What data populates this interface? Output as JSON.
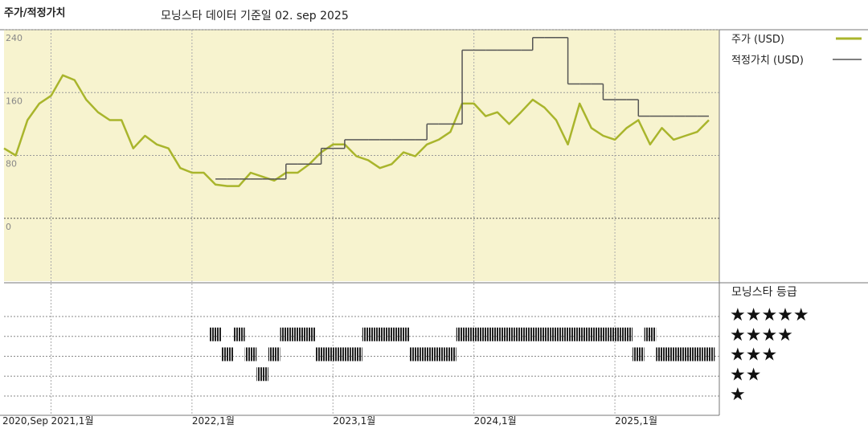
{
  "chart_data": {
    "type": "line",
    "title": "주가/적정가치",
    "subtitle": "모닝스타 데이터 기준일 02. sep 2025",
    "x": [
      "2020-09",
      "2020-10",
      "2020-11",
      "2020-12",
      "2021-01",
      "2021-02",
      "2021-03",
      "2021-04",
      "2021-05",
      "2021-06",
      "2021-07",
      "2021-08",
      "2021-09",
      "2021-10",
      "2021-11",
      "2021-12",
      "2022-01",
      "2022-02",
      "2022-03",
      "2022-04",
      "2022-05",
      "2022-06",
      "2022-07",
      "2022-08",
      "2022-09",
      "2022-10",
      "2022-11",
      "2022-12",
      "2023-01",
      "2023-02",
      "2023-03",
      "2023-04",
      "2023-05",
      "2023-06",
      "2023-07",
      "2023-08",
      "2023-09",
      "2023-10",
      "2023-11",
      "2023-12",
      "2024-01",
      "2024-02",
      "2024-03",
      "2024-04",
      "2024-05",
      "2024-06",
      "2024-07",
      "2024-08",
      "2024-09",
      "2024-10",
      "2024-11",
      "2024-12",
      "2025-01",
      "2025-02",
      "2025-03",
      "2025-04",
      "2025-05",
      "2025-06",
      "2025-07",
      "2025-08",
      "2025-09"
    ],
    "xticks": [
      {
        "value": "2020-09",
        "label": "2020,Sep"
      },
      {
        "value": "2021-01",
        "label": "2021,1월"
      },
      {
        "value": "2022-01",
        "label": "2022,1월"
      },
      {
        "value": "2023-01",
        "label": "2023,1월"
      },
      {
        "value": "2024-01",
        "label": "2024,1월"
      },
      {
        "value": "2025-01",
        "label": "2025,1월"
      }
    ],
    "series": [
      {
        "name": "주가 (USD)",
        "color": "#a9b52c",
        "values": [
          89,
          80,
          125,
          146,
          156,
          182,
          176,
          151,
          135,
          125,
          125,
          89,
          105,
          94,
          89,
          64,
          58,
          58,
          43,
          41,
          41,
          58,
          53,
          48,
          58,
          58,
          69,
          84,
          94,
          94,
          79,
          74,
          64,
          69,
          84,
          79,
          94,
          100,
          110,
          146,
          146,
          130,
          135,
          120,
          135,
          151,
          141,
          125,
          94,
          146,
          115,
          105,
          100,
          115,
          125,
          94,
          115,
          100,
          105,
          110,
          125
        ]
      },
      {
        "name": "적정가치 (USD)",
        "color": "#555555",
        "step": true,
        "values": [
          null,
          null,
          null,
          null,
          null,
          null,
          null,
          null,
          null,
          null,
          null,
          null,
          null,
          null,
          null,
          null,
          null,
          null,
          50,
          50,
          50,
          50,
          50,
          50,
          69,
          69,
          69,
          89,
          89,
          100,
          100,
          100,
          100,
          100,
          100,
          100,
          120,
          120,
          120,
          214,
          214,
          214,
          214,
          214,
          214,
          230,
          230,
          230,
          171,
          171,
          171,
          151,
          151,
          151,
          130,
          130,
          130,
          130,
          130,
          130,
          130
        ]
      }
    ],
    "ylim": [
      -80,
      240
    ],
    "yticks": [
      0,
      80,
      160,
      240
    ],
    "grid": true,
    "rating": {
      "title": "모닝스타 등급",
      "color": "#222222",
      "levels": [
        {
          "value": 5,
          "label": "★★★★★"
        },
        {
          "value": 4,
          "label": "★★★★"
        },
        {
          "value": 3,
          "label": "★★★"
        },
        {
          "value": 2,
          "label": "★★"
        },
        {
          "value": 1,
          "label": "★"
        }
      ],
      "values": [
        null,
        null,
        null,
        null,
        null,
        null,
        null,
        null,
        null,
        null,
        null,
        null,
        null,
        null,
        null,
        null,
        null,
        null,
        4,
        3,
        4,
        3,
        2,
        3,
        4,
        4,
        4,
        3,
        3,
        3,
        3,
        4,
        4,
        4,
        4,
        3,
        3,
        3,
        3,
        4,
        4,
        4,
        4,
        4,
        4,
        4,
        4,
        4,
        4,
        4,
        4,
        4,
        4,
        4,
        3,
        4,
        3,
        3,
        3,
        3,
        3
      ]
    }
  }
}
